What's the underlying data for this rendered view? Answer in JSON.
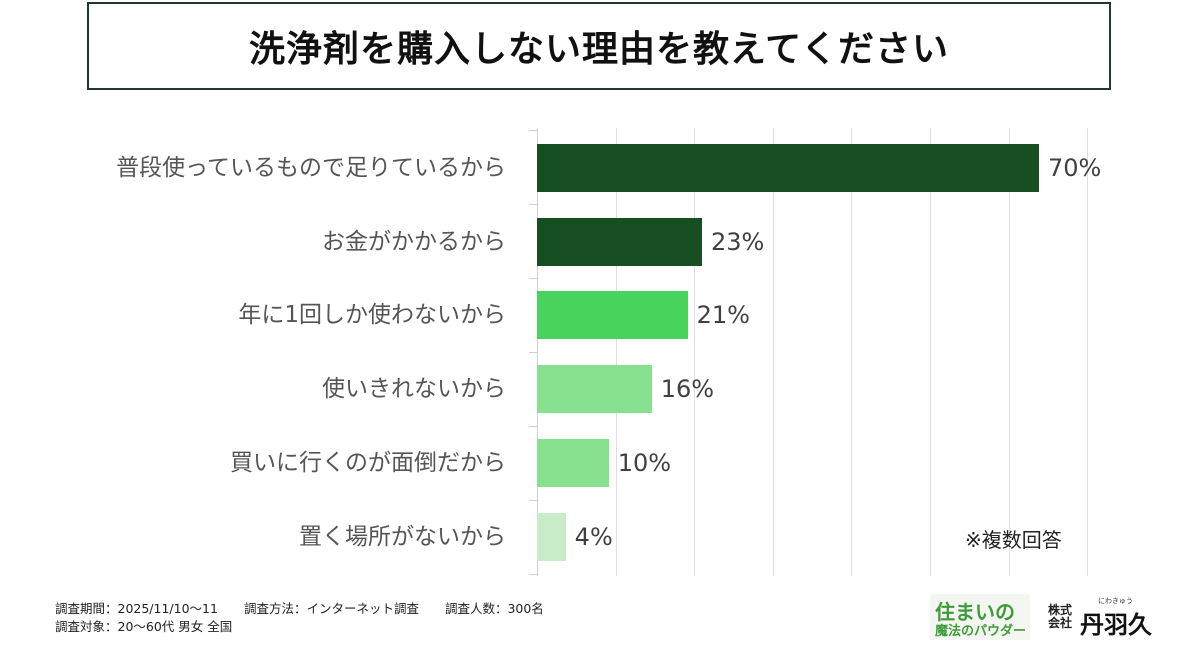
{
  "title": "洗浄剤を購入しない理由を教えてください",
  "note": "※複数回答",
  "footer": {
    "period": "調査期間：2025/11/10～11",
    "method": "調査方法：インターネット調査",
    "count": "調査人数：300名",
    "target": "調査対象：20～60代 男女 全国"
  },
  "brand": {
    "product_line1": "住まいの",
    "product_line2": "魔法のパウダー",
    "company_prefix": "株式会社",
    "company_ruby": "にわきゅう",
    "company_name": "丹羽久"
  },
  "chart_data": {
    "type": "bar",
    "orientation": "horizontal",
    "title": "洗浄剤を購入しない理由を教えてください",
    "categories": [
      "普段使っているもので足りているから",
      "お金がかかるから",
      "年に1回しか使わないから",
      "使いきれないから",
      "買いに行くのが面倒だから",
      "置く場所がないから"
    ],
    "values": [
      70,
      23,
      21,
      16,
      10,
      4
    ],
    "value_labels": [
      "70%",
      "23%",
      "21%",
      "16%",
      "10%",
      "4%"
    ],
    "colors": [
      "#174f22",
      "#174f22",
      "#48d35c",
      "#86e08e",
      "#86e08e",
      "#c8ecc8"
    ],
    "xlabel": "",
    "ylabel": "",
    "unit": "%",
    "grid": true,
    "annotation": "※複数回答"
  }
}
